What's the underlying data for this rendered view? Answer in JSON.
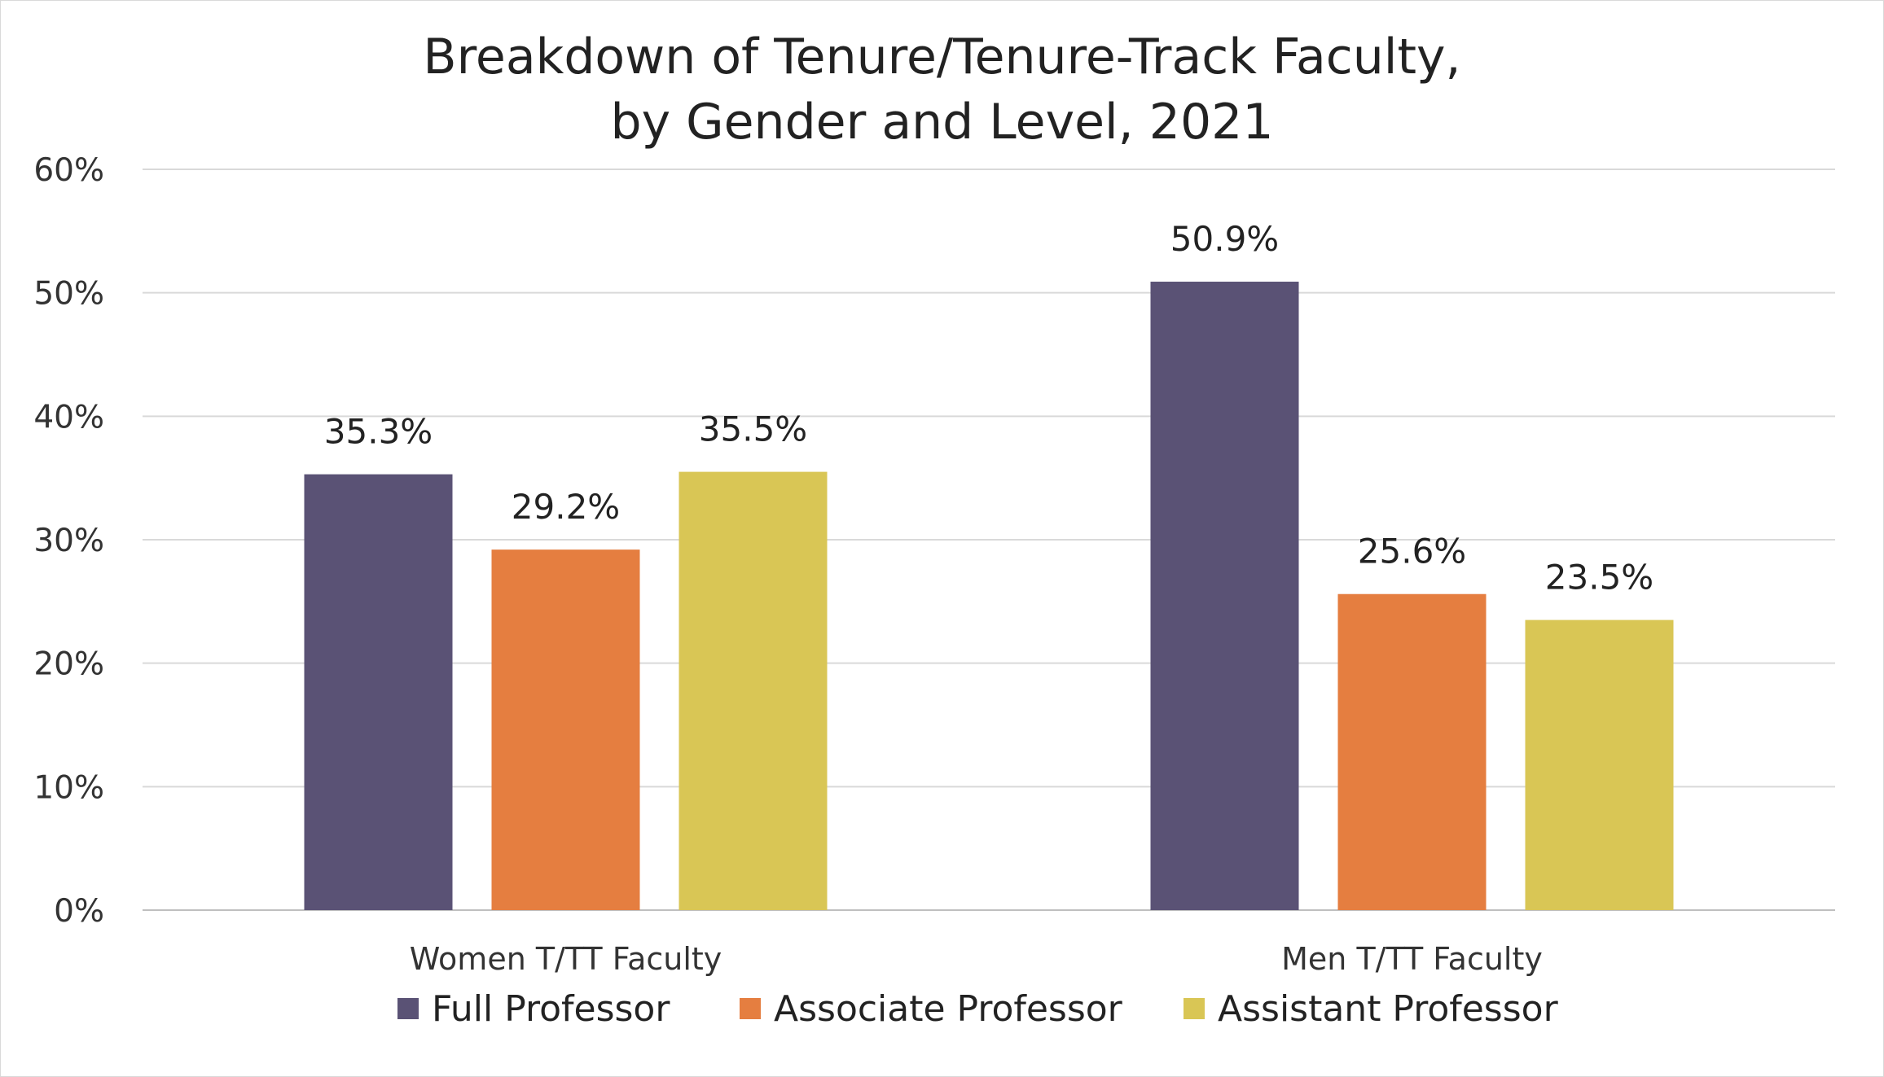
{
  "chart_data": {
    "type": "bar",
    "title": "Breakdown of Tenure/Tenure-Track Faculty,",
    "subtitle": "by Gender and Level, 2021",
    "xlabel": "",
    "ylabel": "",
    "categories": [
      "Women T/TT Faculty",
      "Men T/TT Faculty"
    ],
    "series": [
      {
        "name": "Full Professor",
        "values": [
          35.3,
          50.9
        ],
        "labels": [
          "35.3%",
          "50.9%"
        ],
        "color": "#5a5275"
      },
      {
        "name": "Associate Professor",
        "values": [
          29.2,
          25.6
        ],
        "labels": [
          "29.2%",
          "25.6%"
        ],
        "color": "#e57e40"
      },
      {
        "name": "Assistant Professor",
        "values": [
          35.5,
          23.5
        ],
        "labels": [
          "35.5%",
          "23.5%"
        ],
        "color": "#d9c655"
      }
    ],
    "ylim": [
      0,
      60
    ],
    "yticks": [
      "0%",
      "10%",
      "20%",
      "30%",
      "40%",
      "50%",
      "60%"
    ],
    "grid": true,
    "legend": "bottom",
    "colors": {
      "gridline": "#d9d9d9",
      "axis": "#bfbfbf"
    }
  }
}
